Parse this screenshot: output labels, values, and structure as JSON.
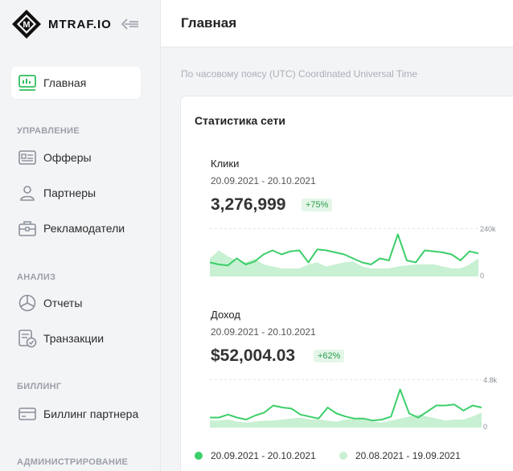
{
  "brand": {
    "name": "MTRAF.IO"
  },
  "sidebar": {
    "items": [
      {
        "label": "Главная",
        "icon": "dashboard-icon",
        "active": true
      },
      {
        "label": "Офферы",
        "icon": "offer-card-icon"
      },
      {
        "label": "Партнеры",
        "icon": "user-icon"
      },
      {
        "label": "Рекламодатели",
        "icon": "briefcase-icon"
      },
      {
        "label": "Отчеты",
        "icon": "pie-chart-icon"
      },
      {
        "label": "Транзакции",
        "icon": "transactions-icon"
      },
      {
        "label": "Биллинг партнера",
        "icon": "credit-card-icon"
      }
    ],
    "sections": {
      "management": "УПРАВЛЕНИЕ",
      "analysis": "АНАЛИЗ",
      "billing": "БИЛЛИНГ",
      "administration": "АДМИНИСТРИРОВАНИЕ"
    }
  },
  "header": {
    "title": "Главная"
  },
  "timezone_note": "По часовому поясу (UTC) Coordinated Universal Time",
  "stats": {
    "title": "Статистика сети",
    "clicks": {
      "label": "Клики",
      "range": "20.09.2021 - 20.10.2021",
      "value": "3,276,999",
      "delta": "+75%",
      "axis_max": "240k",
      "axis_min": "0"
    },
    "revenue": {
      "label": "Доход",
      "range": "20.09.2021 - 20.10.2021",
      "value": "$52,004.03",
      "delta": "+62%",
      "axis_max": "4.8k",
      "axis_min": "0"
    },
    "legend": {
      "current": "20.09.2021 - 20.10.2021",
      "previous": "20.08.2021 - 19.09.2021"
    }
  },
  "colors": {
    "current": "#3ccf6a",
    "previous": "#c8f0d2",
    "accent_green_text": "#2a9d4a"
  },
  "chart_data": [
    {
      "type": "area",
      "title": "Клики",
      "ylim": [
        0,
        240000
      ],
      "series": [
        {
          "name": "20.09.2021 - 20.10.2021",
          "values": [
            70000,
            60000,
            55000,
            90000,
            60000,
            75000,
            110000,
            130000,
            110000,
            125000,
            130000,
            70000,
            135000,
            130000,
            120000,
            110000,
            90000,
            70000,
            60000,
            90000,
            80000,
            210000,
            80000,
            70000,
            130000,
            125000,
            120000,
            110000,
            80000,
            125000,
            115000
          ]
        },
        {
          "name": "20.08.2021 - 19.09.2021",
          "values": [
            90000,
            130000,
            100000,
            80000,
            70000,
            90000,
            60000,
            50000,
            40000,
            40000,
            40000,
            60000,
            70000,
            50000,
            60000,
            70000,
            75000,
            50000,
            40000,
            40000,
            40000,
            50000,
            55000,
            60000,
            60000,
            60000,
            50000,
            40000,
            40000,
            60000,
            90000
          ]
        }
      ]
    },
    {
      "type": "area",
      "title": "Доход",
      "ylim": [
        0,
        4800
      ],
      "series": [
        {
          "name": "20.09.2021 - 20.10.2021",
          "values": [
            1000,
            1000,
            1300,
            1000,
            800,
            1200,
            1500,
            2200,
            2000,
            1900,
            1300,
            1100,
            900,
            2000,
            1400,
            1100,
            900,
            900,
            700,
            800,
            1100,
            3800,
            1400,
            1000,
            1600,
            2200,
            2200,
            2300,
            1700,
            2200,
            2000
          ]
        },
        {
          "name": "20.08.2021 - 19.09.2021",
          "values": [
            700,
            700,
            800,
            600,
            500,
            600,
            700,
            700,
            800,
            900,
            1000,
            800,
            800,
            700,
            600,
            800,
            900,
            800,
            600,
            500,
            700,
            900,
            1100,
            1300,
            1100,
            900,
            700,
            800,
            800,
            1100,
            1500
          ]
        }
      ]
    }
  ]
}
